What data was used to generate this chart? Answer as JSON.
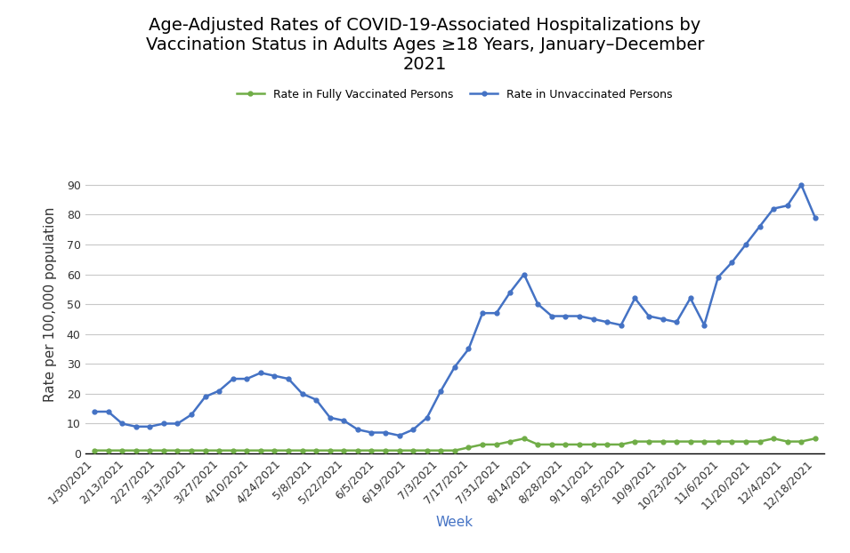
{
  "title": "Age-Adjusted Rates of COVID-19-Associated Hospitalizations by\nVaccination Status in Adults Ages ≥18 Years, January–December\n2021",
  "xlabel": "Week",
  "ylabel": "Rate per 100,000 population",
  "legend_vaccinated": "Rate in Fully Vaccinated Persons",
  "legend_unvaccinated": "Rate in Unvaccinated Persons",
  "tick_labels": [
    "1/30/2021",
    "2/13/2021",
    "2/27/2021",
    "3/13/2021",
    "3/27/2021",
    "4/10/2021",
    "4/24/2021",
    "5/8/2021",
    "5/22/2021",
    "6/5/2021",
    "6/19/2021",
    "7/3/2021",
    "7/17/2021",
    "7/31/2021",
    "8/14/2021",
    "8/28/2021",
    "9/11/2021",
    "9/25/2021",
    "10/9/2021",
    "10/23/2021",
    "11/6/2021",
    "11/20/2021",
    "12/4/2021",
    "12/18/2021"
  ],
  "unvaccinated": [
    14,
    14,
    10,
    9,
    9,
    10,
    10,
    13,
    19,
    21,
    25,
    25,
    27,
    26,
    25,
    20,
    18,
    12,
    11,
    8,
    7,
    7,
    6,
    8,
    12,
    21,
    29,
    35,
    47,
    47,
    54,
    60,
    50,
    46,
    46,
    46,
    45,
    44,
    43,
    52,
    46,
    45,
    44,
    52,
    43,
    59,
    64,
    70,
    76,
    82,
    83,
    90,
    79
  ],
  "vaccinated": [
    1,
    1,
    1,
    1,
    1,
    1,
    1,
    1,
    1,
    1,
    1,
    1,
    1,
    1,
    1,
    1,
    1,
    1,
    1,
    1,
    1,
    1,
    1,
    1,
    1,
    1,
    1,
    2,
    3,
    3,
    4,
    5,
    3,
    3,
    3,
    3,
    3,
    3,
    3,
    4,
    4,
    4,
    4,
    4,
    4,
    4,
    4,
    4,
    4,
    5,
    4,
    4,
    5
  ],
  "unvaccinated_color": "#4472C4",
  "vaccinated_color": "#70AD47",
  "ylim": [
    0,
    100
  ],
  "yticks": [
    0,
    10,
    20,
    30,
    40,
    50,
    60,
    70,
    80,
    90
  ],
  "background_color": "#FFFFFF",
  "grid_color": "#C8C8C8",
  "title_fontsize": 14,
  "axis_label_fontsize": 11,
  "tick_fontsize": 9,
  "tick_label_color": "#4472C4"
}
